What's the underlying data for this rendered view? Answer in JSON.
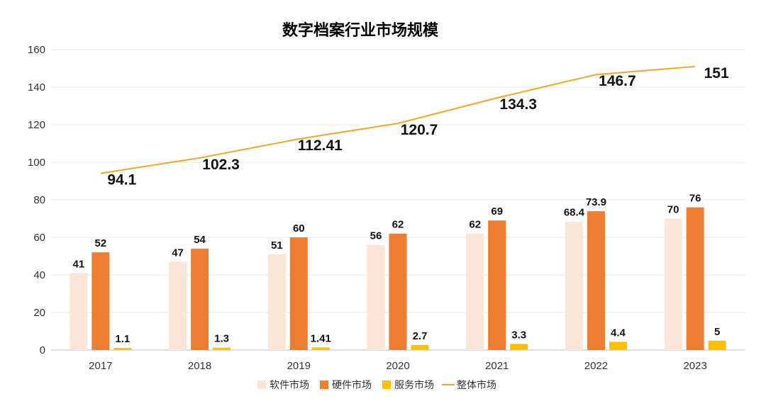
{
  "chart_data": {
    "type": "bar",
    "title": "数字档案行业市场规模",
    "categories": [
      "2017",
      "2018",
      "2019",
      "2020",
      "2021",
      "2022",
      "2023"
    ],
    "ylim": [
      0,
      160
    ],
    "yticks": [
      0,
      20,
      40,
      60,
      80,
      100,
      120,
      140,
      160
    ],
    "grid": true,
    "legend_position": "bottom",
    "series": [
      {
        "name": "软件市场",
        "kind": "bar",
        "color": "#fbe5d6",
        "values": [
          41,
          47,
          51,
          56,
          62,
          68.4,
          70
        ],
        "labels": [
          "41",
          "47",
          "51",
          "56",
          "62",
          "68.4",
          "70"
        ]
      },
      {
        "name": "硬件市场",
        "kind": "bar",
        "color": "#ed7d31",
        "values": [
          52,
          54,
          60,
          62,
          69,
          73.9,
          76
        ],
        "labels": [
          "52",
          "54",
          "60",
          "62",
          "69",
          "73.9",
          "76"
        ]
      },
      {
        "name": "服务市场",
        "kind": "bar",
        "color": "#ffc000",
        "values": [
          1.1,
          1.3,
          1.41,
          2.7,
          3.3,
          4.4,
          5
        ],
        "labels": [
          "1.1",
          "1.3",
          "1.41",
          "2.7",
          "3.3",
          "4.4",
          "5"
        ]
      },
      {
        "name": "整体市场",
        "kind": "line",
        "color": "#f5a623",
        "values": [
          94.1,
          102.3,
          112.41,
          120.7,
          134.3,
          146.7,
          151
        ],
        "labels": [
          "94.1",
          "102.3",
          "112.41",
          "120.7",
          "134.3",
          "146.7",
          "151"
        ]
      }
    ]
  }
}
